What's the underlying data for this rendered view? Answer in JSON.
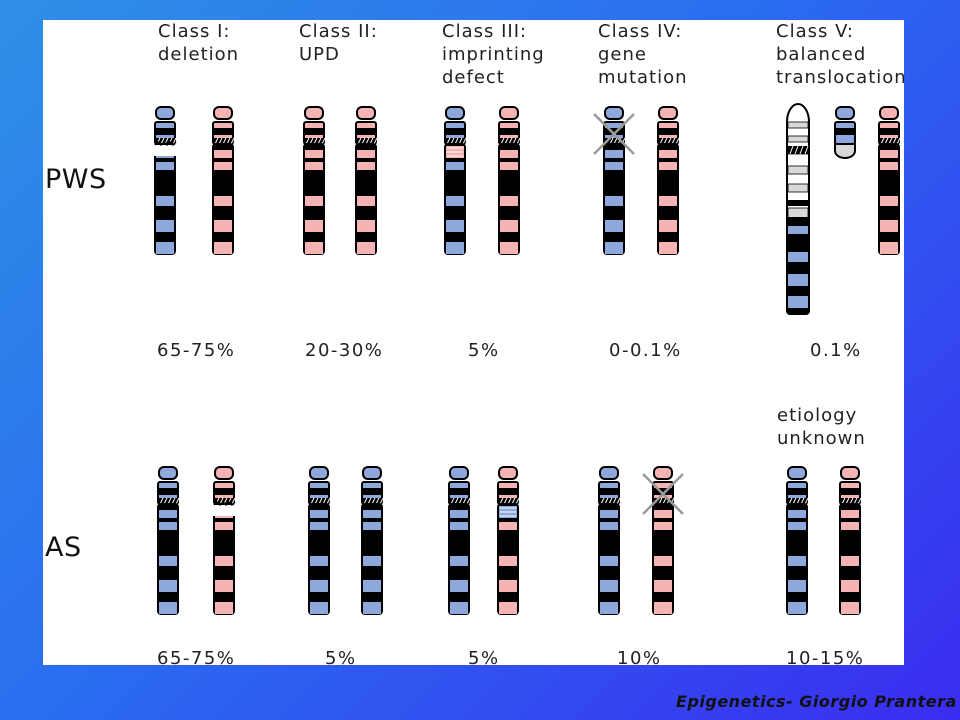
{
  "classes": [
    {
      "line1": "Class I:",
      "line2": "deletion",
      "line3": ""
    },
    {
      "line1": "Class II:",
      "line2": "UPD",
      "line3": ""
    },
    {
      "line1": "Class III:",
      "line2": "imprinting",
      "line3": "defect"
    },
    {
      "line1": "Class IV:",
      "line2": "gene",
      "line3": "mutation"
    },
    {
      "line1": "Class V:",
      "line2": "balanced",
      "line3": "translocation"
    }
  ],
  "rows": {
    "pws": "PWS",
    "as": "AS"
  },
  "pws_percentages": [
    "65-75%",
    "20-30%",
    "5%",
    "0-0.1%",
    "0.1%"
  ],
  "as_percentages": [
    "65-75%",
    "5%",
    "5%",
    "10%",
    "10-15%"
  ],
  "as_class5_note": {
    "line1": "etiology",
    "line2": "unknown"
  },
  "footer": "Epigenetics- Giorgio Prantera",
  "colors": {
    "paternal": "#8fa8dc",
    "maternal": "#f5b3b3",
    "band": "#000000",
    "background_start": "#2f8fe6",
    "background_end": "#3a2cf0"
  }
}
